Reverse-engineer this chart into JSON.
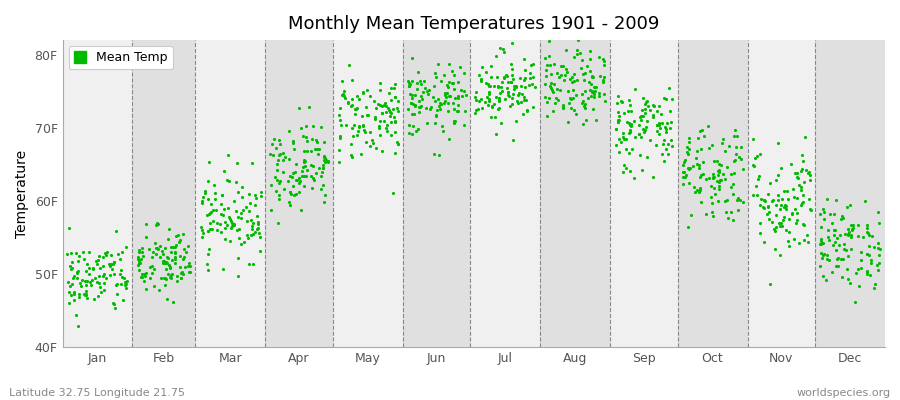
{
  "title": "Monthly Mean Temperatures 1901 - 2009",
  "ylabel": "Temperature",
  "xlabel_bottom_left": "Latitude 32.75 Longitude 21.75",
  "xlabel_bottom_right": "worldspecies.org",
  "legend_label": "Mean Temp",
  "marker_color": "#00bb00",
  "background_color_light": "#f0f0f0",
  "background_color_dark": "#e0e0e0",
  "yticks": [
    40,
    50,
    60,
    70,
    80
  ],
  "ytick_labels": [
    "40F",
    "50F",
    "60F",
    "70F",
    "80F"
  ],
  "ylim": [
    40,
    82
  ],
  "months": [
    "Jan",
    "Feb",
    "Mar",
    "Apr",
    "May",
    "Jun",
    "Jul",
    "Aug",
    "Sep",
    "Oct",
    "Nov",
    "Dec"
  ],
  "mean_temps_by_month": [
    49.5,
    51.5,
    58.0,
    65.0,
    71.5,
    73.5,
    75.5,
    75.5,
    70.0,
    64.0,
    60.0,
    54.0
  ],
  "spread_by_month": [
    2.5,
    2.5,
    3.0,
    3.0,
    3.0,
    2.5,
    2.5,
    2.5,
    3.0,
    3.5,
    4.0,
    3.0
  ],
  "n_years": 109,
  "seed": 42,
  "days_in_month": [
    31,
    28,
    31,
    30,
    31,
    30,
    31,
    31,
    30,
    31,
    30,
    31
  ]
}
